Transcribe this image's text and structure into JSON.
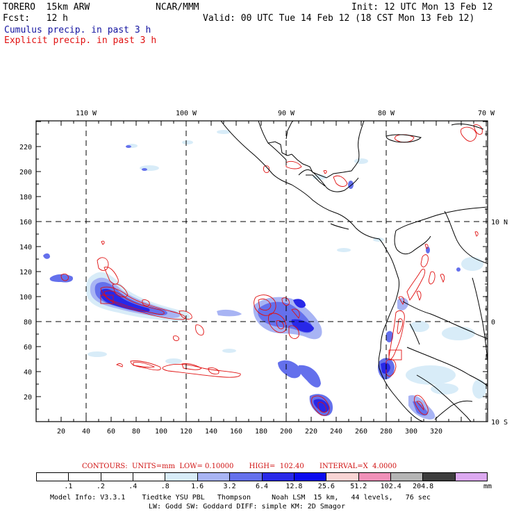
{
  "header": {
    "model": "TORERO  15km ARW",
    "org": "NCAR/MMM",
    "init": "Init: 12 UTC Mon 13 Feb 12",
    "fcst": "Fcst:   12 h",
    "valid": "Valid: 00 UTC Tue 14 Feb 12 (18 CST Mon 13 Feb 12)",
    "line_cumulus": "Cumulus precip. in past 3 h",
    "line_explicit": "Explicit precip. in past 3 h"
  },
  "map": {
    "lon_labels": [
      "110 W",
      "100 W",
      "90 W",
      "80 W",
      "70 W"
    ],
    "lat_labels": [
      "10 N",
      "0",
      "10 S"
    ],
    "x_ticks": [
      "20",
      "40",
      "60",
      "80",
      "100",
      "120",
      "140",
      "160",
      "180",
      "200",
      "220",
      "240",
      "260",
      "280",
      "300",
      "320"
    ],
    "y_ticks": [
      "20",
      "40",
      "60",
      "80",
      "100",
      "120",
      "140",
      "160",
      "180",
      "200",
      "220"
    ]
  },
  "colorbar": {
    "title": "CONTOURS:  UNITS=mm  LOW= 0.10000       HIGH=  102.40       INTERVAL=X  4.0000",
    "levels": [
      ".1",
      ".2",
      ".4",
      ".8",
      "1.6",
      "3.2",
      "6.4",
      "12.8",
      "25.6",
      "51.2",
      "102.4",
      "204.8"
    ],
    "unit": "mm",
    "colors": [
      "#ffffff",
      "#ffffff",
      "#ffffff",
      "#ffffff",
      "#d8ecf8",
      "#a8b4f4",
      "#6470ec",
      "#2828e8",
      "#0a0aee",
      "#f8d4d4",
      "#f090b8",
      "#b4b4b4",
      "#3c3c3c",
      "#dca8f0"
    ]
  },
  "footer": {
    "line1": "Model Info: V3.3.1    Tiedtke YSU PBL   Thompson     Noah LSM  15 km,   44 levels,   76 sec",
    "line2": "LW: Godd SW: Goddard DIFF: simple KM: 2D Smagor"
  }
}
